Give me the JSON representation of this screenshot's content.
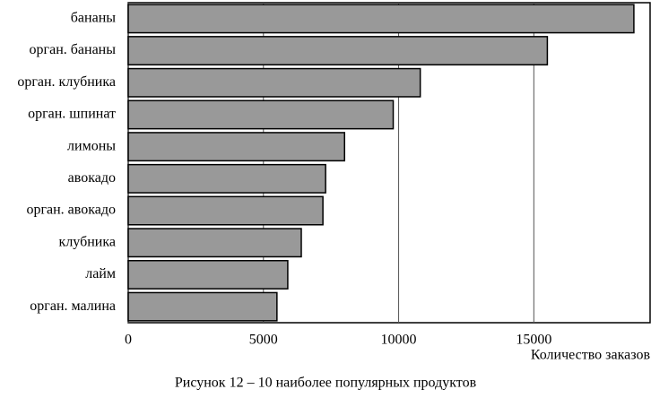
{
  "chart_data": {
    "type": "barh",
    "caption": "Рисунок 12 – 10 наиболее популярных продуктов",
    "x_label": "Количество заказов",
    "categories": [
      "бананы",
      "орган. бананы",
      "орган. клубника",
      "орган. шпинат",
      "лимоны",
      "авокадо",
      "орган. авокадо",
      "клубника",
      "лайм",
      "орган. малина"
    ],
    "values": [
      18700,
      15500,
      10800,
      9800,
      8000,
      7300,
      7200,
      6400,
      5900,
      5500
    ],
    "color": "#999999",
    "xlim": [
      0,
      19300
    ],
    "xticks": [
      0,
      5000,
      10000,
      15000
    ],
    "grid": true
  }
}
